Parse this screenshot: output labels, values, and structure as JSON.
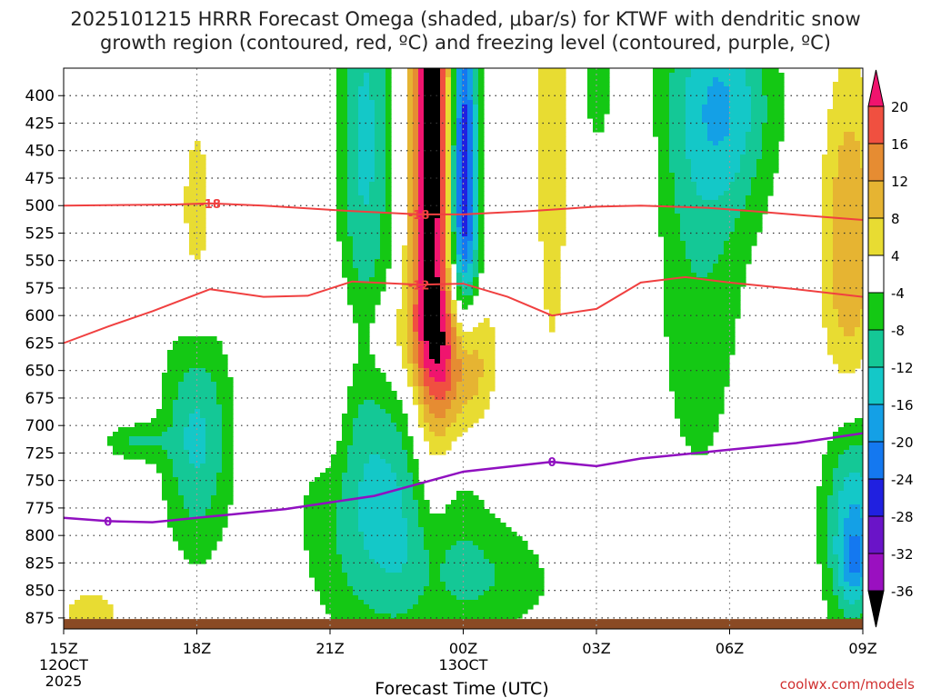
{
  "chart_data": {
    "type": "heatmap",
    "title_line1": "2025101215 HRRR Forecast Omega (shaded, μbar/s) for KTWF with dendritic snow",
    "title_line2": "growth region (contoured, red, ºC) and freezing level (contoured, purple, ºC)",
    "xlabel": "Forecast Time (UTC)",
    "watermark": "coolwx.com/models",
    "x_hours": [
      0,
      3,
      6,
      9,
      12,
      15,
      18
    ],
    "x_ticks": [
      {
        "h": 0,
        "label": "15Z",
        "sub": "12OCT",
        "sub2": "2025"
      },
      {
        "h": 3,
        "label": "18Z"
      },
      {
        "h": 6,
        "label": "21Z"
      },
      {
        "h": 9,
        "label": "00Z",
        "sub": "13OCT"
      },
      {
        "h": 12,
        "label": "03Z"
      },
      {
        "h": 15,
        "label": "06Z"
      },
      {
        "h": 18,
        "label": "09Z"
      }
    ],
    "y_range_hpa": [
      375,
      885
    ],
    "y_ticks": [
      400,
      425,
      450,
      475,
      500,
      525,
      550,
      575,
      600,
      625,
      650,
      675,
      700,
      725,
      750,
      775,
      800,
      825,
      850,
      875
    ],
    "colorbar": {
      "labels": [
        20,
        16,
        12,
        8,
        4,
        -4,
        -8,
        -12,
        -16,
        -20,
        -24,
        -28,
        -32,
        -36
      ],
      "levels": [
        -40,
        -36,
        -32,
        -28,
        -24,
        -20,
        -16,
        -12,
        -8,
        -4,
        4,
        8,
        12,
        16,
        20,
        24
      ],
      "colors": [
        "#000000",
        "#a0a0a0",
        "#9a10c0",
        "#6a14c8",
        "#2020e0",
        "#1478f0",
        "#14a0e6",
        "#14c8c8",
        "#14c896",
        "#14c814",
        "#ffffff",
        "#e8dc32",
        "#e6b432",
        "#e68c32",
        "#f05040",
        "#f0146e",
        "#000000"
      ]
    },
    "omega_blobs": [
      {
        "h": 8.3,
        "p": 500,
        "sh": 0.35,
        "sp": 170,
        "amp": 26
      },
      {
        "h": 8.3,
        "p": 350,
        "sh": 0.3,
        "sp": 90,
        "amp": 8
      },
      {
        "h": 9.0,
        "p": 440,
        "sh": 0.22,
        "sp": 110,
        "amp": -28
      },
      {
        "h": 9.0,
        "p": 560,
        "sh": 0.35,
        "sp": 60,
        "amp": -10
      },
      {
        "h": 6.8,
        "p": 440,
        "sh": 0.45,
        "sp": 150,
        "amp": -13
      },
      {
        "h": 9.0,
        "p": 640,
        "sh": 0.45,
        "sp": 55,
        "amp": 17
      },
      {
        "h": 7.6,
        "p": 620,
        "sh": 0.9,
        "sp": 35,
        "amp": 6
      },
      {
        "h": 6.0,
        "p": 660,
        "sh": 0.3,
        "sp": 60,
        "amp": 6
      },
      {
        "h": 3.0,
        "p": 510,
        "sh": 0.3,
        "sp": 75,
        "amp": 6
      },
      {
        "h": 11.0,
        "p": 400,
        "sh": 0.35,
        "sp": 240,
        "amp": 6
      },
      {
        "h": 3.0,
        "p": 710,
        "sh": 0.55,
        "sp": 75,
        "amp": -13
      },
      {
        "h": 1.6,
        "p": 715,
        "sh": 0.5,
        "sp": 12,
        "amp": -8
      },
      {
        "h": 7.4,
        "p": 780,
        "sh": 1.3,
        "sp": 85,
        "amp": -13
      },
      {
        "h": 9.8,
        "p": 840,
        "sh": 1.4,
        "sp": 35,
        "amp": -6
      },
      {
        "h": 12.0,
        "p": 380,
        "sh": 0.3,
        "sp": 60,
        "amp": -6
      },
      {
        "h": 14.3,
        "p": 480,
        "sh": 0.8,
        "sp": 210,
        "amp": -8
      },
      {
        "h": 15.0,
        "p": 410,
        "sh": 0.8,
        "sp": 70,
        "amp": -11
      },
      {
        "h": 17.7,
        "p": 540,
        "sh": 0.45,
        "sp": 120,
        "amp": 12
      },
      {
        "h": 17.8,
        "p": 780,
        "sh": 0.5,
        "sp": 75,
        "amp": -17
      },
      {
        "h": 17.8,
        "p": 825,
        "sh": 0.25,
        "sp": 25,
        "amp": -8
      },
      {
        "h": 0.6,
        "p": 870,
        "sh": 0.8,
        "sp": 22,
        "amp": 5
      },
      {
        "h": 13.0,
        "p": 575,
        "sh": 0.25,
        "sp": 110,
        "amp": 5
      }
    ],
    "contour_minus18": {
      "color": "#f04040",
      "label": "-18",
      "points": [
        [
          0,
          500
        ],
        [
          2.5,
          499
        ],
        [
          3.3,
          498
        ],
        [
          4.5,
          500
        ],
        [
          6.5,
          505
        ],
        [
          8.0,
          508
        ],
        [
          9.0,
          508
        ],
        [
          10.5,
          505
        ],
        [
          12.0,
          501
        ],
        [
          13.0,
          500
        ],
        [
          14.5,
          502
        ],
        [
          15.5,
          505
        ],
        [
          17.0,
          510
        ],
        [
          18,
          513
        ]
      ],
      "label_at": [
        [
          3.3,
          498
        ],
        [
          8.0,
          508
        ]
      ]
    },
    "contour_minus12": {
      "color": "#f04040",
      "label": "-12",
      "points": [
        [
          0,
          625
        ],
        [
          1.0,
          610
        ],
        [
          2.0,
          596
        ],
        [
          3.3,
          576
        ],
        [
          4.5,
          583
        ],
        [
          5.5,
          582
        ],
        [
          6.5,
          569
        ],
        [
          8.0,
          572
        ],
        [
          9.0,
          571
        ],
        [
          10.0,
          583
        ],
        [
          11.0,
          600
        ],
        [
          12.0,
          594
        ],
        [
          13.0,
          570
        ],
        [
          14.0,
          565
        ],
        [
          15.0,
          570
        ],
        [
          16.5,
          576
        ],
        [
          18,
          583
        ]
      ],
      "label_at": [
        [
          8.0,
          572
        ]
      ]
    },
    "contour_zero": {
      "color": "#9010c0",
      "label": "0",
      "points": [
        [
          0,
          784
        ],
        [
          1.0,
          787
        ],
        [
          2.0,
          788
        ],
        [
          3.0,
          784
        ],
        [
          5.0,
          776
        ],
        [
          7.0,
          764
        ],
        [
          9.0,
          742
        ],
        [
          11.0,
          733
        ],
        [
          12.0,
          737
        ],
        [
          13.0,
          730
        ],
        [
          15.0,
          722
        ],
        [
          16.5,
          716
        ],
        [
          18,
          707
        ]
      ],
      "label_at": [
        [
          1.0,
          787
        ],
        [
          11.0,
          733
        ]
      ]
    },
    "ground": {
      "color": "#8a4a24",
      "p_top": 876
    }
  }
}
